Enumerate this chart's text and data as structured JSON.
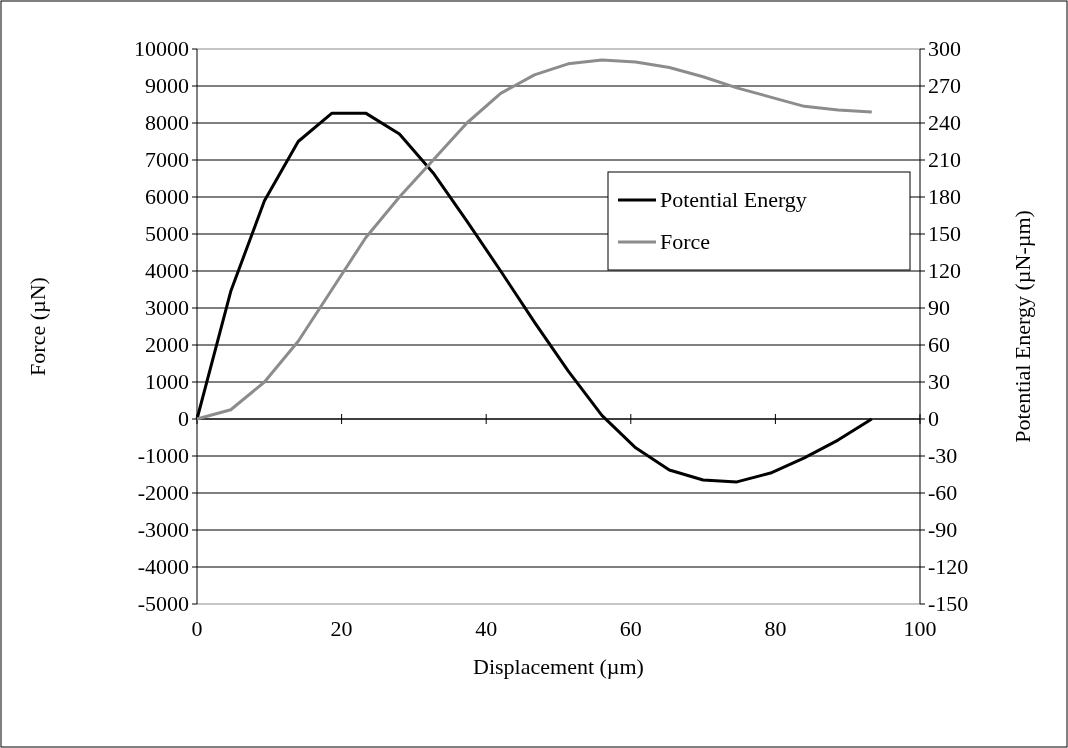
{
  "chart_data": {
    "type": "line",
    "xlabel": "Displacement (µm)",
    "ylabel": "Force (µN)",
    "y2label": "Potential Energy (µN-µm)",
    "xlim": [
      0,
      100
    ],
    "xticks": [
      0,
      20,
      40,
      60,
      80,
      100
    ],
    "ylim": [
      -5000,
      10000
    ],
    "yticks": [
      -5000,
      -4000,
      -3000,
      -2000,
      -1000,
      0,
      1000,
      2000,
      3000,
      4000,
      5000,
      6000,
      7000,
      8000,
      9000,
      10000
    ],
    "y2lim": [
      -150,
      300
    ],
    "y2ticks": [
      -150,
      -120,
      -90,
      -60,
      -30,
      0,
      30,
      60,
      90,
      120,
      150,
      180,
      210,
      240,
      270,
      300
    ],
    "grid": "y",
    "legend": "right",
    "marker": "none",
    "line_style": "solid",
    "x": [
      0,
      4.67,
      9.33,
      14,
      18.67,
      23.33,
      28,
      32.67,
      37.33,
      42,
      46.67,
      51.33,
      56,
      60.67,
      65.33,
      70,
      74.67,
      79.33,
      84,
      88.67,
      93.33
    ],
    "series": [
      {
        "name": "Potential Energy",
        "color": "#000000",
        "axis": "y2",
        "values": [
          0,
          103.5,
          177,
          225,
          248,
          248,
          231,
          199.5,
          160.5,
          120,
          78.6,
          39,
          3,
          -23.4,
          -41.4,
          -49.5,
          -51,
          -43.8,
          -31.5,
          -17.1,
          0
        ]
      },
      {
        "name": "Force",
        "color": "#8c8c8c",
        "values": [
          0,
          250,
          1000,
          2100,
          3500,
          4900,
          6000,
          7000,
          8000,
          8800,
          9300,
          9600,
          9700,
          9650,
          9500,
          9250,
          8950,
          8700,
          8450,
          8350,
          8300
        ]
      }
    ]
  }
}
